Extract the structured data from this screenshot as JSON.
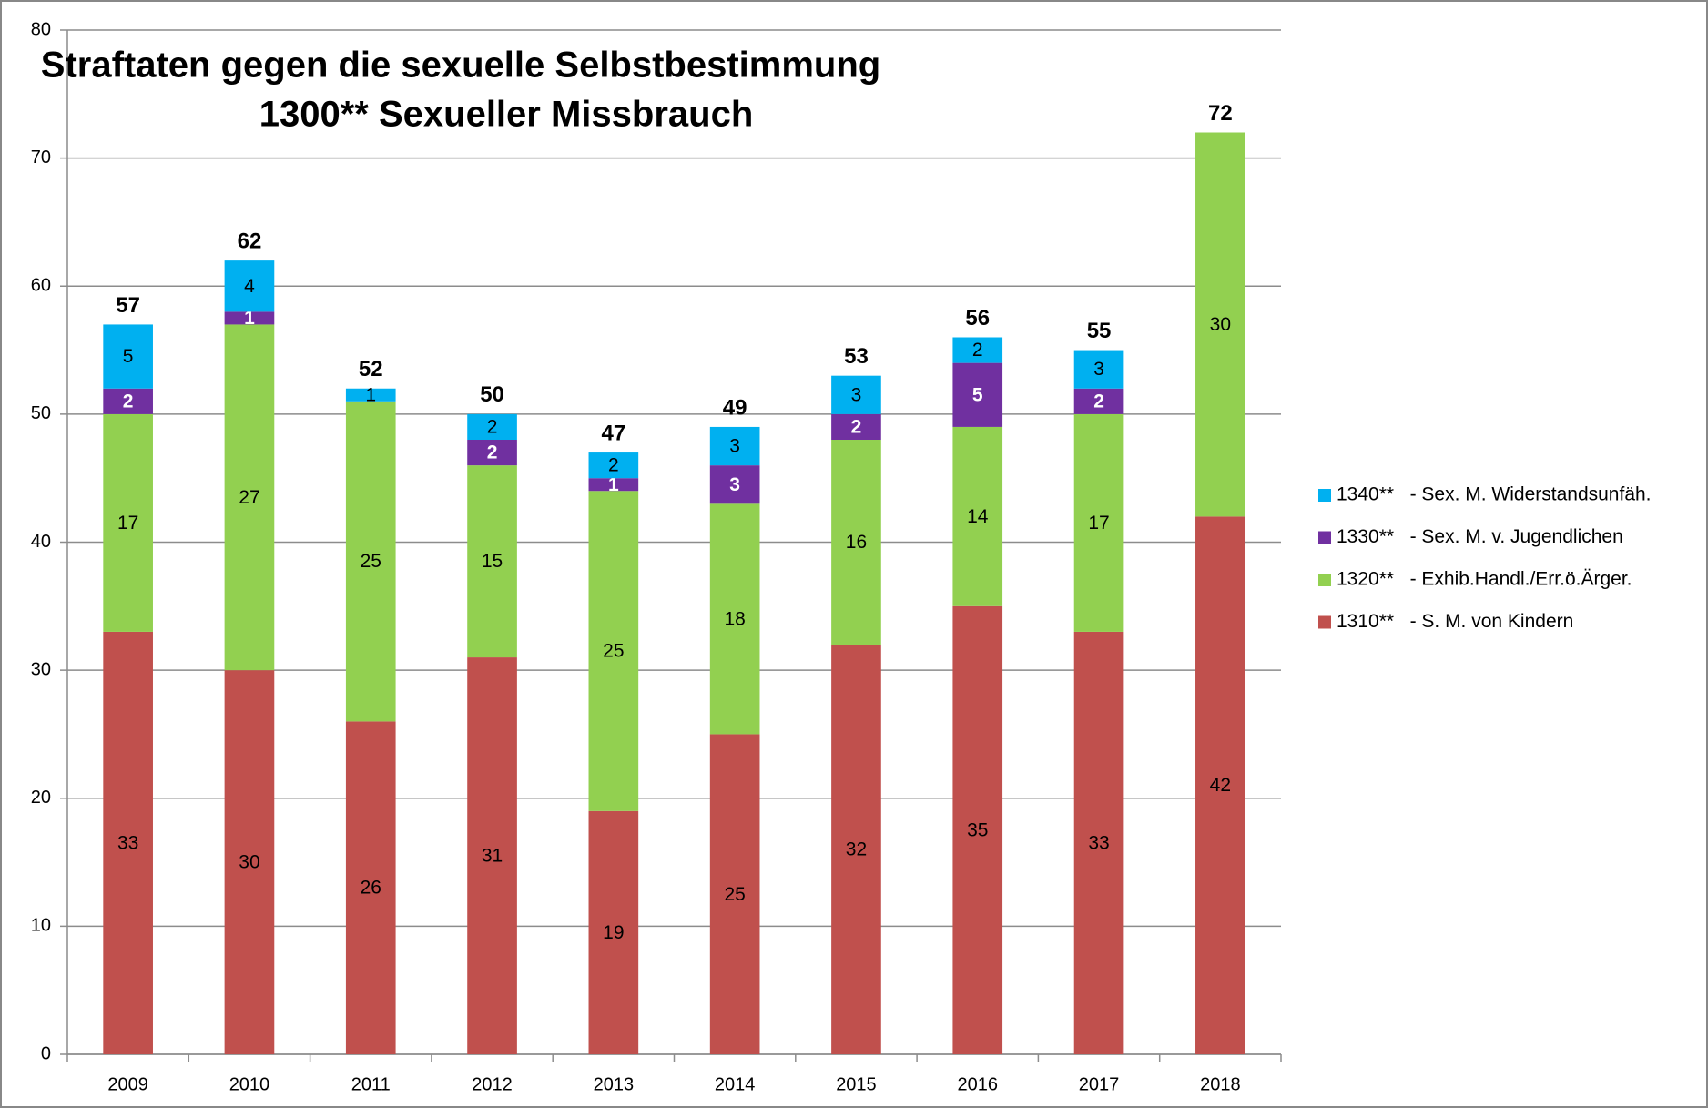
{
  "chart_data": {
    "type": "stacked-bar",
    "title": [
      "Straftaten gegen die sexuelle Selbstbestimmung",
      "1300** Sexueller Missbrauch"
    ],
    "categories": [
      "2009",
      "2010",
      "2011",
      "2012",
      "2013",
      "2014",
      "2015",
      "2016",
      "2017",
      "2018"
    ],
    "series": [
      {
        "name": "1310**   - S. M. von Kindern",
        "color": "#c0504d",
        "values": [
          33,
          30,
          26,
          31,
          19,
          25,
          32,
          35,
          33,
          42
        ]
      },
      {
        "name": "1320**   - Exhib.Handl./Err.ö.Ärger.",
        "color": "#92d050",
        "values": [
          17,
          27,
          25,
          15,
          25,
          18,
          16,
          14,
          17,
          30
        ]
      },
      {
        "name": "1330**   - Sex. M. v. Jugendlichen",
        "color": "#7030a0",
        "values": [
          2,
          1,
          null,
          2,
          1,
          3,
          2,
          5,
          2,
          null
        ]
      },
      {
        "name": "1340**   - Sex. M. Widerstandsunfäh.",
        "color": "#00b0f0",
        "values": [
          5,
          4,
          1,
          2,
          2,
          3,
          3,
          2,
          3,
          null
        ]
      }
    ],
    "totals": [
      57,
      62,
      52,
      50,
      47,
      49,
      53,
      56,
      55,
      72
    ],
    "ylim": [
      0,
      80
    ],
    "yticks": [
      0,
      10,
      20,
      30,
      40,
      50,
      60,
      70,
      80
    ],
    "grid": true
  }
}
